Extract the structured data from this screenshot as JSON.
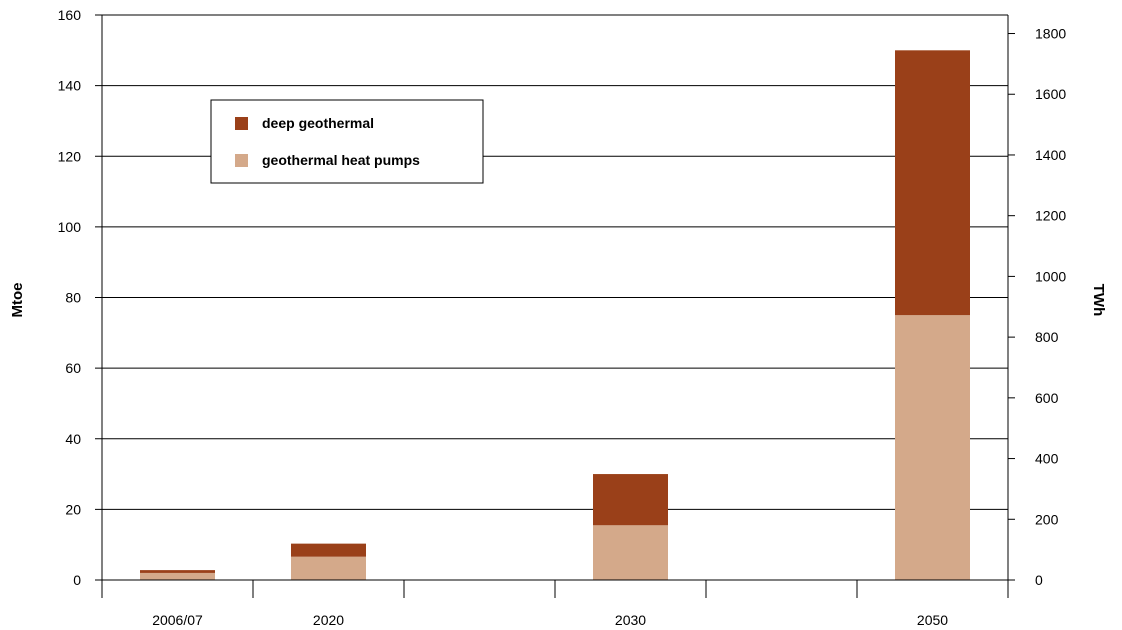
{
  "chart_data": {
    "type": "bar",
    "stacked": true,
    "title": "",
    "categories": [
      "2006/07",
      "2020",
      "",
      "2030",
      "",
      "2050"
    ],
    "series": [
      {
        "name": "geothermal heat pumps",
        "color": "#d4a98a",
        "values": [
          2,
          6.6,
          null,
          15.5,
          null,
          75
        ]
      },
      {
        "name": "deep geothermal",
        "color": "#9a4019",
        "values": [
          0.8,
          3.7,
          null,
          14.5,
          null,
          75
        ]
      }
    ],
    "y_left": {
      "label": "Mtoe",
      "range": [
        0,
        160
      ],
      "ticks": [
        0,
        20,
        40,
        60,
        80,
        100,
        120,
        140,
        160
      ]
    },
    "y_right": {
      "label": "TWh",
      "range": [
        0,
        1861
      ],
      "ticks": [
        0,
        200,
        400,
        600,
        800,
        1000,
        1200,
        1400,
        1600,
        1800
      ]
    },
    "grid": true,
    "legend_position": "top-left"
  }
}
